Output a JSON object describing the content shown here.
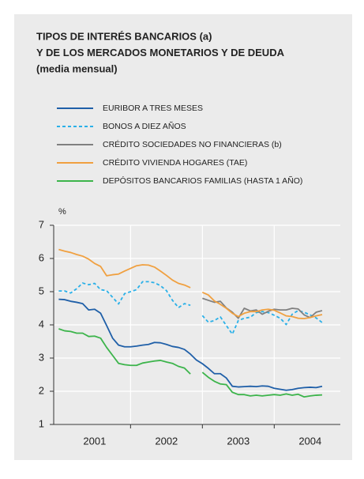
{
  "chart_data": {
    "type": "line",
    "title_lines": [
      "TIPOS DE INTERÉS BANCARIOS (a)",
      "Y DE LOS MERCADOS MONETARIOS Y DE DEUDA",
      "(media mensual)"
    ],
    "y_label": "%",
    "x": [
      2001,
      2001.083,
      2001.167,
      2001.25,
      2001.333,
      2001.417,
      2001.5,
      2001.583,
      2001.667,
      2001.75,
      2001.833,
      2001.917,
      2002,
      2002.083,
      2002.167,
      2002.25,
      2002.333,
      2002.417,
      2002.5,
      2002.583,
      2002.667,
      2002.75,
      2002.833,
      2002.917,
      2003,
      2003.083,
      2003.167,
      2003.25,
      2003.333,
      2003.417,
      2003.5,
      2003.583,
      2003.667,
      2003.75,
      2003.833,
      2003.917,
      2004,
      2004.083,
      2004.167,
      2004.25,
      2004.333,
      2004.417,
      2004.5,
      2004.583,
      2004.667
    ],
    "series": [
      {
        "name": "EURIBOR A TRES MESES",
        "color": "#1f5fa8",
        "dash": false,
        "values": [
          4.77,
          4.76,
          4.71,
          4.68,
          4.64,
          4.45,
          4.47,
          4.35,
          3.98,
          3.6,
          3.39,
          3.34,
          3.34,
          3.36,
          3.39,
          3.41,
          3.47,
          3.46,
          3.41,
          3.35,
          3.32,
          3.26,
          3.12,
          2.94,
          2.83,
          2.69,
          2.53,
          2.53,
          2.4,
          2.15,
          2.13,
          2.14,
          2.15,
          2.14,
          2.16,
          2.15,
          2.09,
          2.06,
          2.03,
          2.05,
          2.09,
          2.11,
          2.12,
          2.11,
          2.15
        ]
      },
      {
        "name": "BONOS A DIEZ AÑOS",
        "color": "#2ab0e8",
        "dash": true,
        "values": [
          5.02,
          5.02,
          4.96,
          5.09,
          5.26,
          5.21,
          5.25,
          5.06,
          5.03,
          4.83,
          4.63,
          4.94,
          5.0,
          5.06,
          5.3,
          5.3,
          5.27,
          5.18,
          5.03,
          4.74,
          4.52,
          4.64,
          4.59,
          null,
          4.28,
          4.08,
          4.13,
          4.24,
          3.98,
          3.72,
          4.13,
          4.2,
          4.23,
          4.37,
          4.4,
          4.37,
          4.29,
          4.2,
          4.01,
          4.32,
          4.43,
          4.38,
          4.3,
          4.21,
          4.07
        ]
      },
      {
        "name": "CRÉDITO SOCIEDADES NO FINANCIERAS (b)",
        "color": "#808080",
        "dash": false,
        "values": [
          null,
          null,
          null,
          null,
          null,
          null,
          null,
          null,
          null,
          null,
          null,
          null,
          null,
          null,
          null,
          null,
          null,
          null,
          null,
          null,
          null,
          null,
          null,
          null,
          4.8,
          4.74,
          4.68,
          4.71,
          4.51,
          4.38,
          4.2,
          4.5,
          4.42,
          4.45,
          4.32,
          4.41,
          4.47,
          4.45,
          4.45,
          4.5,
          4.48,
          4.3,
          4.22,
          4.38,
          4.43
        ]
      },
      {
        "name": "CRÉDITO VIVIENDA HOGARES (TAE)",
        "color": "#f0a040",
        "dash": false,
        "values": [
          6.27,
          6.22,
          6.18,
          6.12,
          6.07,
          5.98,
          5.85,
          5.76,
          5.48,
          5.51,
          5.53,
          5.62,
          5.7,
          5.78,
          5.81,
          5.8,
          5.74,
          5.62,
          5.49,
          5.35,
          5.25,
          5.2,
          5.12,
          null,
          4.98,
          4.9,
          4.72,
          4.62,
          4.5,
          4.35,
          4.25,
          4.35,
          4.4,
          4.4,
          4.45,
          4.47,
          4.44,
          4.36,
          4.27,
          4.25,
          4.2,
          4.19,
          4.22,
          4.27,
          4.31
        ]
      },
      {
        "name": "DEPÓSITOS BANCARIOS FAMILIAS (HASTA 1 AÑO)",
        "color": "#3cb44b",
        "dash": false,
        "values": [
          3.88,
          3.82,
          3.8,
          3.75,
          3.75,
          3.65,
          3.66,
          3.6,
          3.32,
          3.08,
          2.84,
          2.8,
          2.78,
          2.78,
          2.85,
          2.88,
          2.91,
          2.93,
          2.88,
          2.84,
          2.75,
          2.7,
          2.52,
          null,
          2.57,
          2.42,
          2.3,
          2.22,
          2.2,
          1.97,
          1.9,
          1.9,
          1.86,
          1.88,
          1.86,
          1.88,
          1.9,
          1.88,
          1.92,
          1.88,
          1.91,
          1.83,
          1.86,
          1.88,
          1.89
        ]
      }
    ],
    "xlim": [
      2000.93,
      2004.92
    ],
    "xticks": [
      {
        "value": 2001.5,
        "label": "2001"
      },
      {
        "value": 2002.5,
        "label": "2002"
      },
      {
        "value": 2003.5,
        "label": "2003"
      },
      {
        "value": 2004.5,
        "label": "2004"
      }
    ],
    "vgrid": [
      2002,
      2003,
      2004
    ],
    "ylim": [
      1,
      7
    ],
    "yticks": [
      1,
      2,
      3,
      4,
      5,
      6,
      7
    ],
    "grid": true
  }
}
